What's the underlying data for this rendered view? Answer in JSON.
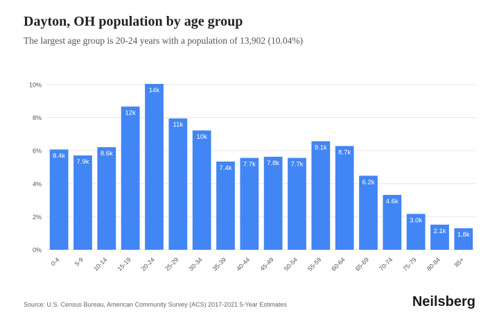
{
  "header": {
    "title": "Dayton, OH population by age group",
    "subtitle": "The largest age group is 20-24 years with a population of 13,902 (10.04%)"
  },
  "footer": {
    "source": "Source: U.S. Census Bureau, American Community Survey (ACS) 2017-2021 5-Year Estimates",
    "brand": "Neilsberg"
  },
  "colors": {
    "bar": "#4285f4",
    "grid": "#e6e6e6",
    "axis_text": "#555555",
    "label_text": "#ffffff"
  },
  "chart_data": {
    "type": "bar",
    "title": "Dayton, OH population by age group",
    "xlabel": "",
    "ylabel": "",
    "categories": [
      "0-4",
      "5-9",
      "10-14",
      "15-19",
      "20-24",
      "25-29",
      "30-34",
      "35-39",
      "40-44",
      "45-49",
      "50-54",
      "55-59",
      "60-64",
      "65-69",
      "70-74",
      "75-79",
      "80-84",
      "85+"
    ],
    "values": [
      6.07,
      5.71,
      6.21,
      8.67,
      10.04,
      7.95,
      7.22,
      5.34,
      5.56,
      5.63,
      5.56,
      6.57,
      6.28,
      4.48,
      3.32,
      2.17,
      1.52,
      1.3
    ],
    "data_labels": [
      "8.4k",
      "7.9k",
      "8.6k",
      "12k",
      "14k",
      "11k",
      "10k",
      "7.4k",
      "7.7k",
      "7.8k",
      "7.7k",
      "9.1k",
      "8.7k",
      "6.2k",
      "4.6k",
      "3.0k",
      "2.1k",
      "1.8k"
    ],
    "yticks": [
      0,
      2,
      4,
      6,
      8,
      10
    ],
    "ytick_labels": [
      "0%",
      "2%",
      "4%",
      "6%",
      "8%",
      "10%"
    ],
    "ylim": [
      0,
      10.5
    ],
    "grid": true
  }
}
